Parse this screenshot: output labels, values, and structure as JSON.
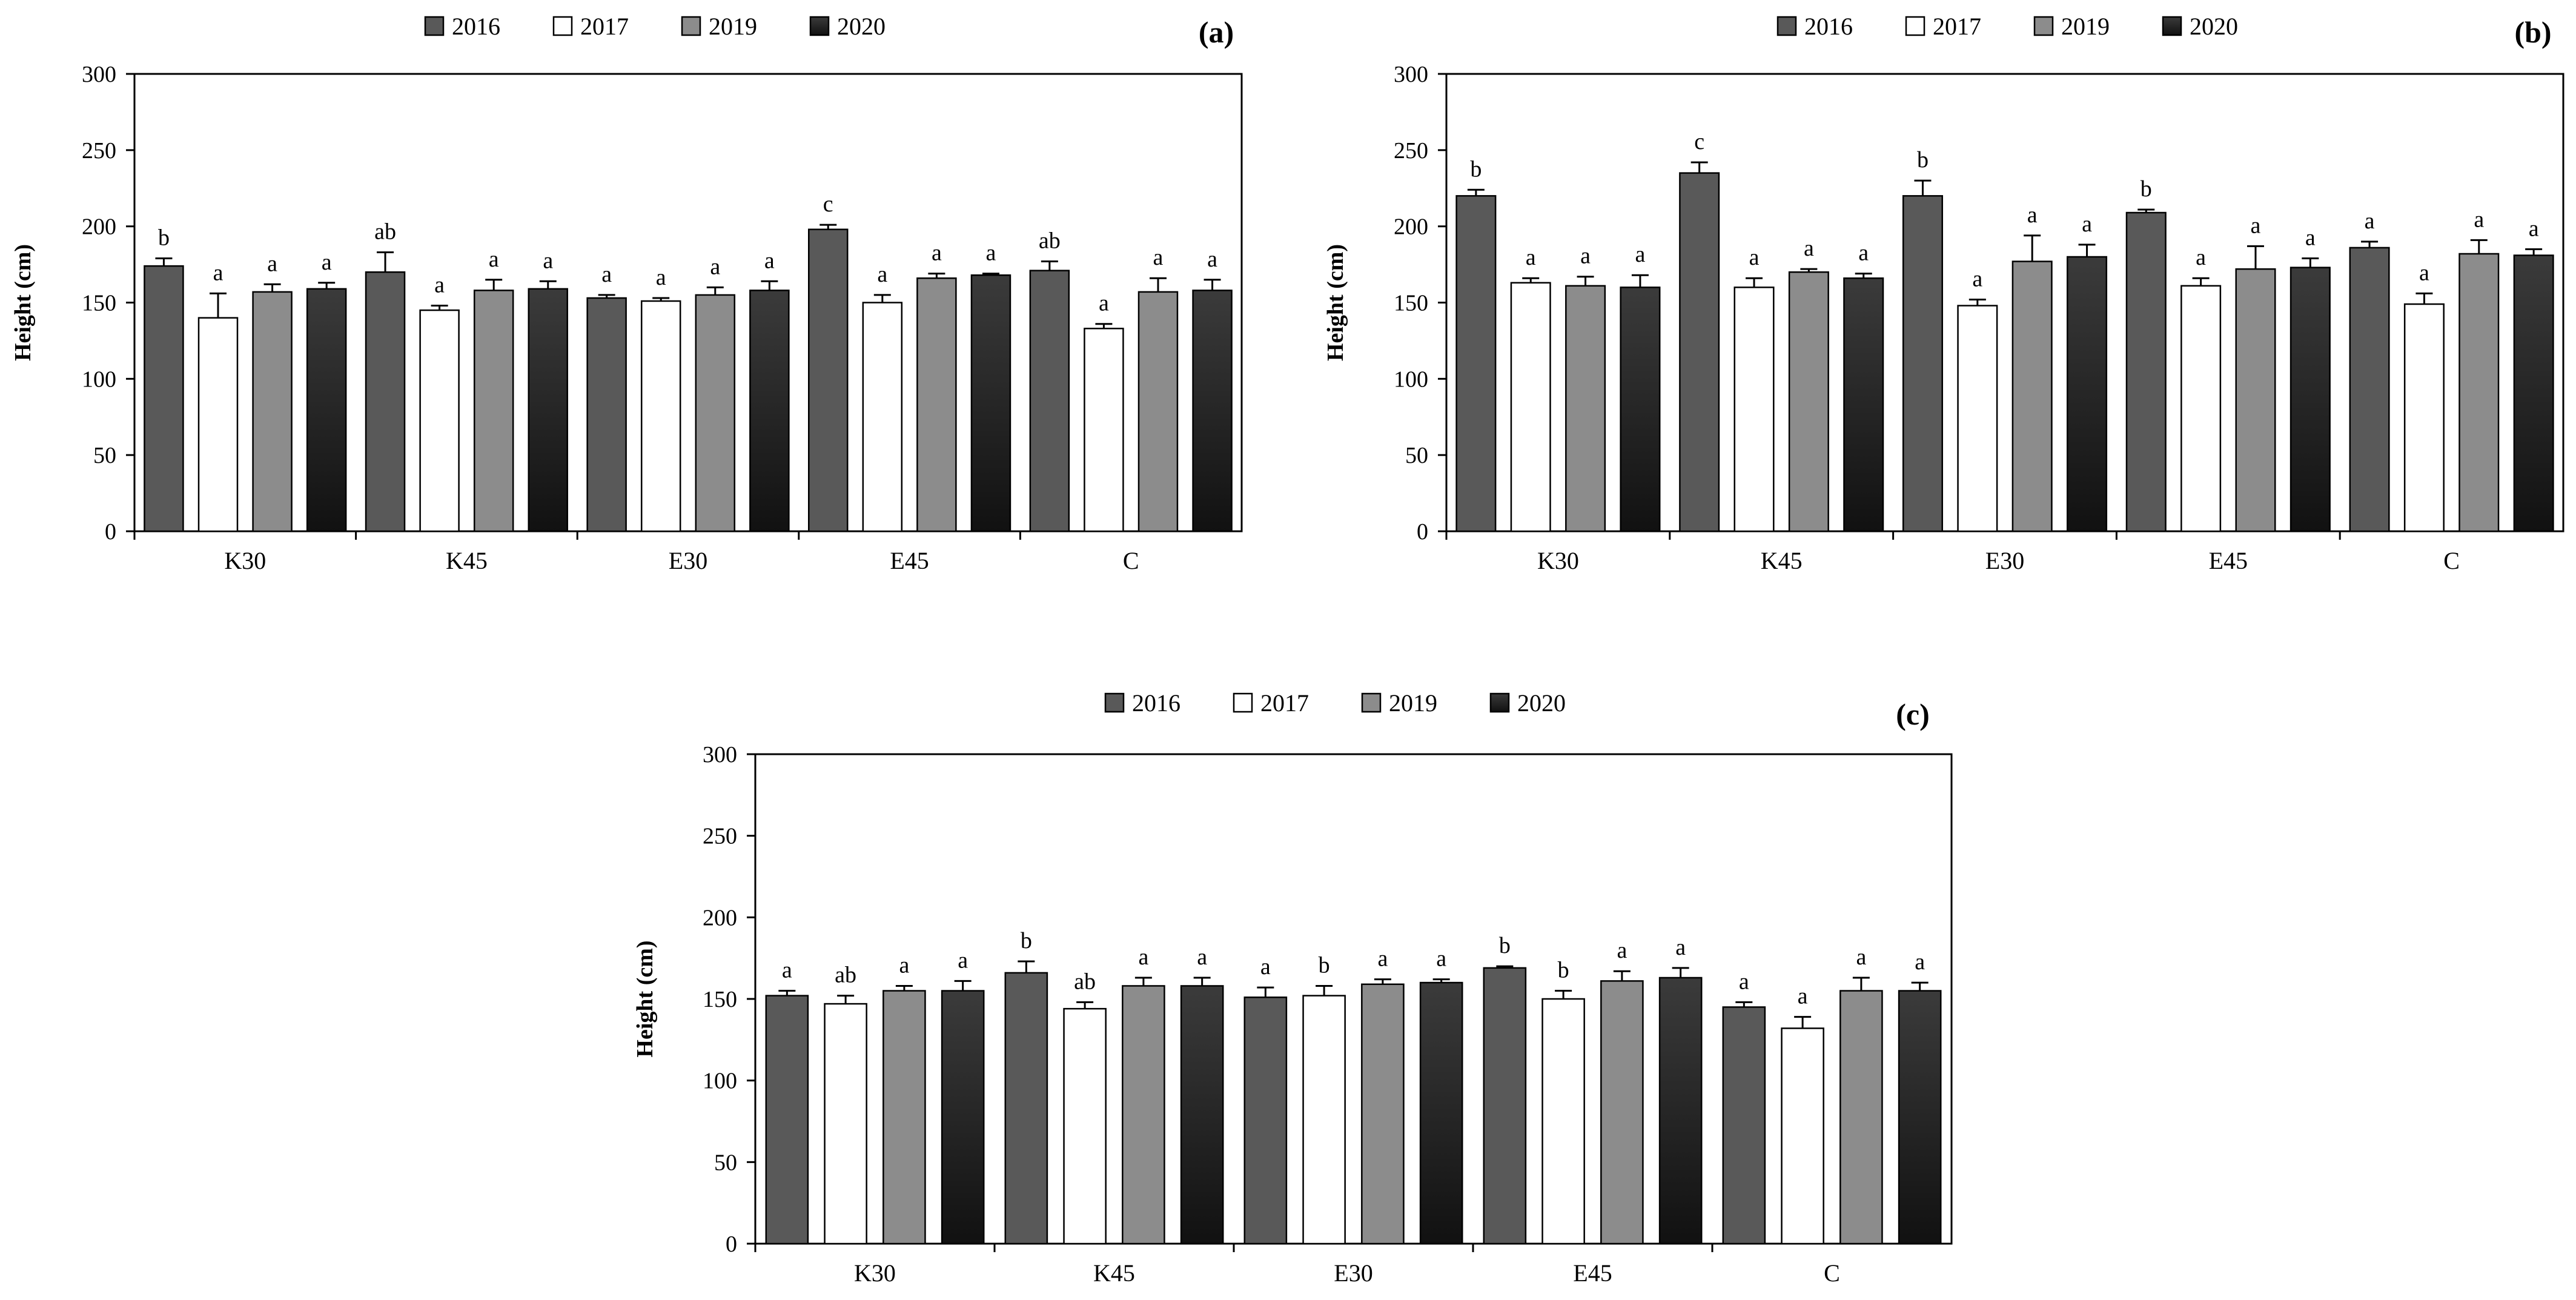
{
  "legend": [
    "2016",
    "2017",
    "2019",
    "2020"
  ],
  "colors": {
    "2016": "#595959",
    "2017": "#ffffff",
    "2019": "#8c8c8c",
    "2020_top": "#3b3b3b",
    "2020_bottom": "#111111",
    "edge": "#000000",
    "axis": "#000000"
  },
  "chart_data": [
    {
      "type": "bar",
      "panel": "(a)",
      "ylabel": "Height (cm)",
      "ylim": [
        0,
        300
      ],
      "yticks": [
        0,
        50,
        100,
        150,
        200,
        250,
        300
      ],
      "categories": [
        "K30",
        "K45",
        "E30",
        "E45",
        "C"
      ],
      "series": [
        {
          "name": "2016",
          "values": [
            174,
            170,
            153,
            198,
            171
          ],
          "errors": [
            5,
            13,
            2,
            3,
            6
          ],
          "labels": [
            "b",
            "ab",
            "a",
            "c",
            "ab"
          ]
        },
        {
          "name": "2017",
          "values": [
            140,
            145,
            151,
            150,
            133
          ],
          "errors": [
            16,
            3,
            2,
            5,
            3
          ],
          "labels": [
            "a",
            "a",
            "a",
            "a",
            "a"
          ]
        },
        {
          "name": "2019",
          "values": [
            157,
            158,
            155,
            166,
            157
          ],
          "errors": [
            5,
            7,
            5,
            3,
            9
          ],
          "labels": [
            "a",
            "a",
            "a",
            "a",
            "a"
          ]
        },
        {
          "name": "2020",
          "values": [
            159,
            159,
            158,
            168,
            158
          ],
          "errors": [
            4,
            5,
            6,
            1,
            7
          ],
          "labels": [
            "a",
            "a",
            "a",
            "a",
            "a"
          ]
        }
      ]
    },
    {
      "type": "bar",
      "panel": "(b)",
      "ylabel": "Height (cm)",
      "ylim": [
        0,
        300
      ],
      "yticks": [
        0,
        50,
        100,
        150,
        200,
        250,
        300
      ],
      "categories": [
        "K30",
        "K45",
        "E30",
        "E45",
        "C"
      ],
      "series": [
        {
          "name": "2016",
          "values": [
            220,
            235,
            220,
            209,
            186
          ],
          "errors": [
            4,
            7,
            10,
            2,
            4
          ],
          "labels": [
            "b",
            "c",
            "b",
            "b",
            "a"
          ]
        },
        {
          "name": "2017",
          "values": [
            163,
            160,
            148,
            161,
            149
          ],
          "errors": [
            3,
            6,
            4,
            5,
            7
          ],
          "labels": [
            "a",
            "a",
            "a",
            "a",
            "a"
          ]
        },
        {
          "name": "2019",
          "values": [
            161,
            170,
            177,
            172,
            182
          ],
          "errors": [
            6,
            2,
            17,
            15,
            9
          ],
          "labels": [
            "a",
            "a",
            "a",
            "a",
            "a"
          ]
        },
        {
          "name": "2020",
          "values": [
            160,
            166,
            180,
            173,
            181
          ],
          "errors": [
            8,
            3,
            8,
            6,
            4
          ],
          "labels": [
            "a",
            "a",
            "a",
            "a",
            "a"
          ]
        }
      ]
    },
    {
      "type": "bar",
      "panel": "(c)",
      "ylabel": "Height (cm)",
      "ylim": [
        0,
        300
      ],
      "yticks": [
        0,
        50,
        100,
        150,
        200,
        250,
        300
      ],
      "categories": [
        "K30",
        "K45",
        "E30",
        "E45",
        "C"
      ],
      "series": [
        {
          "name": "2016",
          "values": [
            152,
            166,
            151,
            169,
            145
          ],
          "errors": [
            3,
            7,
            6,
            1,
            3
          ],
          "labels": [
            "a",
            "b",
            "a",
            "b",
            "a"
          ]
        },
        {
          "name": "2017",
          "values": [
            147,
            144,
            152,
            150,
            132
          ],
          "errors": [
            5,
            4,
            6,
            5,
            7
          ],
          "labels": [
            "ab",
            "ab",
            "b",
            "b",
            "a"
          ]
        },
        {
          "name": "2019",
          "values": [
            155,
            158,
            159,
            161,
            155
          ],
          "errors": [
            3,
            5,
            3,
            6,
            8
          ],
          "labels": [
            "a",
            "a",
            "a",
            "a",
            "a"
          ]
        },
        {
          "name": "2020",
          "values": [
            155,
            158,
            160,
            163,
            155
          ],
          "errors": [
            6,
            5,
            2,
            6,
            5
          ],
          "labels": [
            "a",
            "a",
            "a",
            "a",
            "a"
          ]
        }
      ]
    }
  ]
}
